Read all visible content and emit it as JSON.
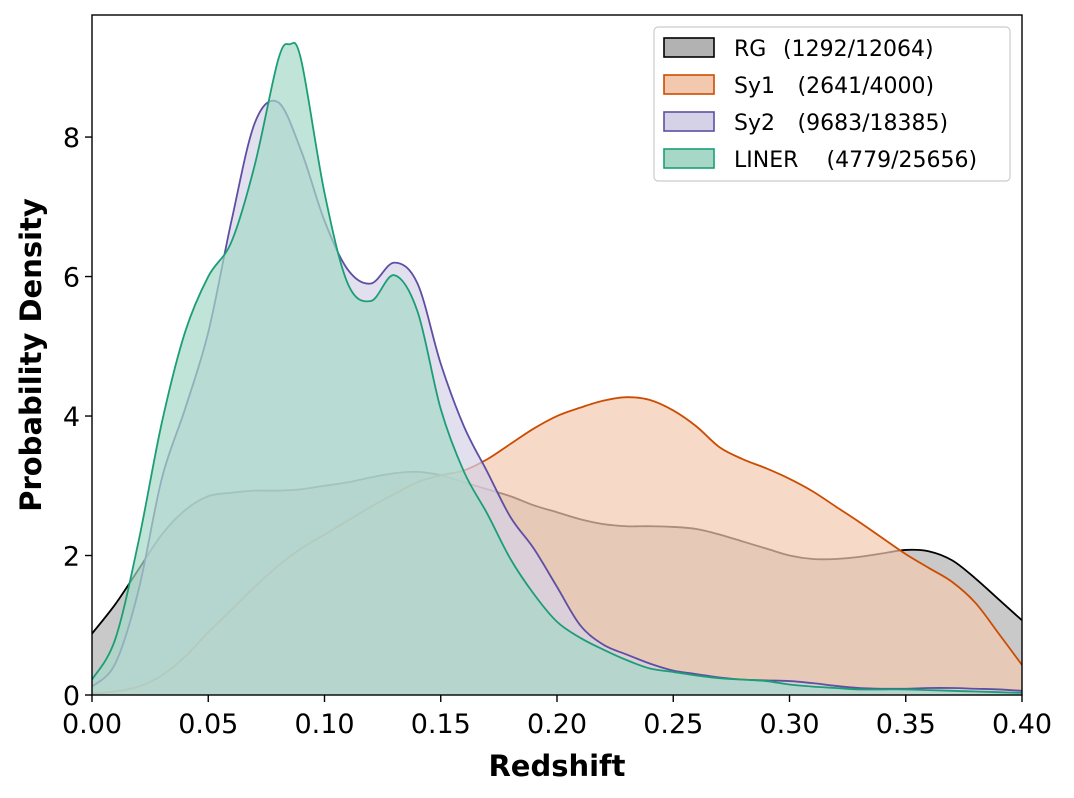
{
  "chart_data": {
    "type": "area",
    "xlabel": "Redshift",
    "ylabel": "Probability Density",
    "xlim": [
      0.0,
      0.4
    ],
    "ylim": [
      0,
      9.75
    ],
    "xticks": [
      0.0,
      0.05,
      0.1,
      0.15,
      0.2,
      0.25,
      0.3,
      0.35,
      0.4
    ],
    "xtick_labels": [
      "0.00",
      "0.05",
      "0.10",
      "0.15",
      "0.20",
      "0.25",
      "0.30",
      "0.35",
      "0.40"
    ],
    "yticks": [
      0,
      2,
      4,
      6,
      8
    ],
    "ytick_labels": [
      "0",
      "2",
      "4",
      "6",
      "8"
    ],
    "grid": false,
    "legend_position": "top-right",
    "series": [
      {
        "name": "RG",
        "counts": "(1292/12064)",
        "fill": "#b2b2b2",
        "stroke": "#000000",
        "points": [
          [
            0.0,
            0.88
          ],
          [
            0.01,
            1.3
          ],
          [
            0.02,
            1.8
          ],
          [
            0.03,
            2.3
          ],
          [
            0.04,
            2.65
          ],
          [
            0.05,
            2.85
          ],
          [
            0.06,
            2.9
          ],
          [
            0.07,
            2.93
          ],
          [
            0.08,
            2.93
          ],
          [
            0.09,
            2.95
          ],
          [
            0.1,
            3.0
          ],
          [
            0.11,
            3.05
          ],
          [
            0.12,
            3.12
          ],
          [
            0.13,
            3.18
          ],
          [
            0.14,
            3.2
          ],
          [
            0.15,
            3.15
          ],
          [
            0.16,
            3.05
          ],
          [
            0.17,
            2.95
          ],
          [
            0.18,
            2.85
          ],
          [
            0.19,
            2.72
          ],
          [
            0.2,
            2.62
          ],
          [
            0.21,
            2.52
          ],
          [
            0.22,
            2.45
          ],
          [
            0.23,
            2.42
          ],
          [
            0.24,
            2.42
          ],
          [
            0.25,
            2.41
          ],
          [
            0.26,
            2.38
          ],
          [
            0.27,
            2.3
          ],
          [
            0.28,
            2.2
          ],
          [
            0.29,
            2.1
          ],
          [
            0.3,
            2.0
          ],
          [
            0.31,
            1.95
          ],
          [
            0.32,
            1.95
          ],
          [
            0.33,
            1.98
          ],
          [
            0.34,
            2.03
          ],
          [
            0.35,
            2.08
          ],
          [
            0.36,
            2.06
          ],
          [
            0.37,
            1.93
          ],
          [
            0.38,
            1.67
          ],
          [
            0.39,
            1.37
          ],
          [
            0.4,
            1.07
          ]
        ]
      },
      {
        "name": "Sy1",
        "counts": "(2641/4000)",
        "fill": "#f2c9ae",
        "stroke": "#cc4c02",
        "points": [
          [
            0.0,
            0.02
          ],
          [
            0.01,
            0.05
          ],
          [
            0.02,
            0.12
          ],
          [
            0.03,
            0.28
          ],
          [
            0.04,
            0.55
          ],
          [
            0.05,
            0.9
          ],
          [
            0.06,
            1.22
          ],
          [
            0.07,
            1.55
          ],
          [
            0.08,
            1.85
          ],
          [
            0.09,
            2.1
          ],
          [
            0.1,
            2.3
          ],
          [
            0.11,
            2.5
          ],
          [
            0.12,
            2.7
          ],
          [
            0.13,
            2.88
          ],
          [
            0.14,
            3.05
          ],
          [
            0.15,
            3.15
          ],
          [
            0.16,
            3.22
          ],
          [
            0.17,
            3.38
          ],
          [
            0.18,
            3.6
          ],
          [
            0.19,
            3.82
          ],
          [
            0.2,
            4.0
          ],
          [
            0.21,
            4.12
          ],
          [
            0.22,
            4.22
          ],
          [
            0.23,
            4.27
          ],
          [
            0.24,
            4.23
          ],
          [
            0.25,
            4.08
          ],
          [
            0.26,
            3.85
          ],
          [
            0.27,
            3.55
          ],
          [
            0.28,
            3.38
          ],
          [
            0.29,
            3.25
          ],
          [
            0.3,
            3.1
          ],
          [
            0.31,
            2.92
          ],
          [
            0.32,
            2.7
          ],
          [
            0.33,
            2.48
          ],
          [
            0.34,
            2.25
          ],
          [
            0.35,
            2.02
          ],
          [
            0.36,
            1.82
          ],
          [
            0.37,
            1.62
          ],
          [
            0.38,
            1.32
          ],
          [
            0.39,
            0.88
          ],
          [
            0.4,
            0.43
          ]
        ]
      },
      {
        "name": "Sy2",
        "counts": "(9683/18385)",
        "fill": "#d5d2e8",
        "stroke": "#5e4fa2",
        "points": [
          [
            0.0,
            0.12
          ],
          [
            0.01,
            0.45
          ],
          [
            0.02,
            1.5
          ],
          [
            0.03,
            3.1
          ],
          [
            0.04,
            4.1
          ],
          [
            0.05,
            5.2
          ],
          [
            0.06,
            6.8
          ],
          [
            0.07,
            8.2
          ],
          [
            0.08,
            8.5
          ],
          [
            0.09,
            7.8
          ],
          [
            0.1,
            6.8
          ],
          [
            0.11,
            6.1
          ],
          [
            0.12,
            5.9
          ],
          [
            0.13,
            6.2
          ],
          [
            0.14,
            5.9
          ],
          [
            0.15,
            4.75
          ],
          [
            0.16,
            3.85
          ],
          [
            0.17,
            3.2
          ],
          [
            0.18,
            2.55
          ],
          [
            0.19,
            2.1
          ],
          [
            0.2,
            1.55
          ],
          [
            0.21,
            1.0
          ],
          [
            0.22,
            0.72
          ],
          [
            0.23,
            0.58
          ],
          [
            0.24,
            0.45
          ],
          [
            0.25,
            0.35
          ],
          [
            0.26,
            0.3
          ],
          [
            0.27,
            0.25
          ],
          [
            0.28,
            0.22
          ],
          [
            0.29,
            0.21
          ],
          [
            0.3,
            0.2
          ],
          [
            0.31,
            0.17
          ],
          [
            0.32,
            0.13
          ],
          [
            0.33,
            0.1
          ],
          [
            0.34,
            0.09
          ],
          [
            0.35,
            0.09
          ],
          [
            0.36,
            0.1
          ],
          [
            0.37,
            0.1
          ],
          [
            0.38,
            0.09
          ],
          [
            0.39,
            0.08
          ],
          [
            0.4,
            0.06
          ]
        ]
      },
      {
        "name": "LINER",
        "counts": "(4779/25656)",
        "fill": "#a7d8c7",
        "stroke": "#1b9e77",
        "points": [
          [
            0.0,
            0.22
          ],
          [
            0.01,
            0.8
          ],
          [
            0.02,
            2.2
          ],
          [
            0.03,
            3.9
          ],
          [
            0.04,
            5.2
          ],
          [
            0.05,
            6.0
          ],
          [
            0.06,
            6.5
          ],
          [
            0.07,
            7.6
          ],
          [
            0.08,
            9.1
          ],
          [
            0.085,
            9.33
          ],
          [
            0.09,
            9.1
          ],
          [
            0.1,
            7.2
          ],
          [
            0.11,
            5.9
          ],
          [
            0.12,
            5.65
          ],
          [
            0.13,
            6.02
          ],
          [
            0.14,
            5.5
          ],
          [
            0.15,
            4.1
          ],
          [
            0.16,
            3.2
          ],
          [
            0.17,
            2.6
          ],
          [
            0.18,
            1.95
          ],
          [
            0.19,
            1.45
          ],
          [
            0.2,
            1.05
          ],
          [
            0.21,
            0.82
          ],
          [
            0.22,
            0.65
          ],
          [
            0.23,
            0.5
          ],
          [
            0.24,
            0.38
          ],
          [
            0.25,
            0.33
          ],
          [
            0.26,
            0.28
          ],
          [
            0.27,
            0.24
          ],
          [
            0.28,
            0.22
          ],
          [
            0.29,
            0.2
          ],
          [
            0.3,
            0.15
          ],
          [
            0.31,
            0.12
          ],
          [
            0.32,
            0.1
          ],
          [
            0.33,
            0.08
          ],
          [
            0.34,
            0.08
          ],
          [
            0.35,
            0.08
          ],
          [
            0.36,
            0.07
          ],
          [
            0.37,
            0.06
          ],
          [
            0.38,
            0.05
          ],
          [
            0.39,
            0.04
          ],
          [
            0.4,
            0.03
          ]
        ]
      }
    ]
  }
}
